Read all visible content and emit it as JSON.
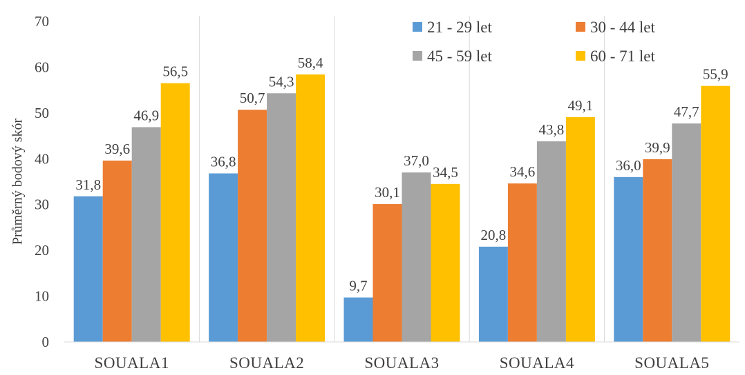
{
  "chart_data": {
    "type": "bar",
    "ylabel": "Průměrný bodový skór",
    "xlabel": "",
    "ylim": [
      0,
      70
    ],
    "yticks": [
      0,
      10,
      20,
      30,
      40,
      50,
      60,
      70
    ],
    "categories": [
      "SOUALA1",
      "SOUALA2",
      "SOUALA3",
      "SOUALA4",
      "SOUALA5"
    ],
    "series": [
      {
        "name": "21 - 29 let",
        "color": "#5b9bd5",
        "values": [
          31.8,
          36.8,
          9.7,
          20.8,
          36.0
        ],
        "labels": [
          "31,8",
          "36,8",
          "9,7",
          "20,8",
          "36,0"
        ]
      },
      {
        "name": "30 - 44 let",
        "color": "#ed7d31",
        "values": [
          39.6,
          50.7,
          30.1,
          34.6,
          39.9
        ],
        "labels": [
          "39,6",
          "50,7",
          "30,1",
          "34,6",
          "39,9"
        ]
      },
      {
        "name": "45 - 59 let",
        "color": "#a5a5a5",
        "values": [
          46.9,
          54.3,
          37.0,
          43.8,
          47.7
        ],
        "labels": [
          "46,9",
          "54,3",
          "37,0",
          "43,8",
          "47,7"
        ]
      },
      {
        "name": "60 - 71 let",
        "color": "#ffc000",
        "values": [
          56.5,
          58.4,
          34.5,
          49.1,
          55.9
        ],
        "labels": [
          "56,5",
          "58,4",
          "34,5",
          "49,1",
          "55,9"
        ]
      }
    ],
    "legend_position": "top-right",
    "grid": false
  }
}
